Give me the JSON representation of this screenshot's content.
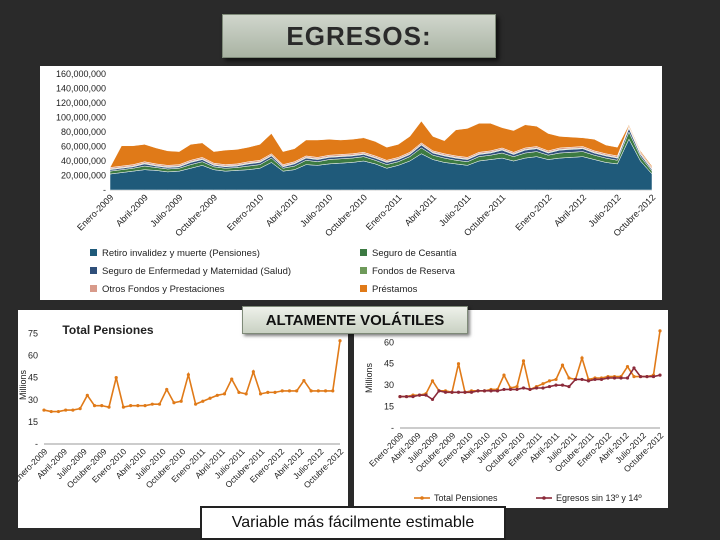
{
  "title": "EGRESOS:",
  "badge": "ALTAMENTE VOLÁTILES",
  "caption": "Variable más fácilmente estimable",
  "chart_data": [
    {
      "type": "area",
      "stacked": true,
      "ylim": [
        0,
        160000000
      ],
      "y_ticks": [
        "160,000,000",
        "140,000,000",
        "120,000,000",
        "100,000,000",
        "80,000,000",
        "60,000,000",
        "40,000,000",
        "20,000,000",
        "-"
      ],
      "x_tick_labels": [
        "Enero-2009",
        "Abril-2009",
        "Julio-2009",
        "Octubre-2009",
        "Enero-2010",
        "Abril-2010",
        "Julio-2010",
        "Octubre-2010",
        "Enero-2011",
        "Abril-2011",
        "Julio-2011",
        "Octubre-2011",
        "Enero-2012",
        "Abril-2012",
        "Julio-2012",
        "Octubre-2012"
      ],
      "n_points": 48,
      "series": [
        {
          "name": "Retiro invalidez y muerte (Pensiones)",
          "color": "#1f5a7a",
          "values": [
            22,
            24,
            26,
            28,
            27,
            25,
            26,
            30,
            34,
            28,
            26,
            27,
            28,
            30,
            38,
            26,
            28,
            35,
            34,
            36,
            37,
            38,
            40,
            36,
            30,
            34,
            40,
            50,
            42,
            38,
            36,
            34,
            40,
            42,
            44,
            40,
            44,
            46,
            42,
            44,
            45,
            46,
            42,
            38,
            36,
            70,
            40,
            22
          ]
        },
        {
          "name": "Seguro de Cesantía",
          "color": "#3c7a42",
          "values": [
            4,
            4,
            4,
            5,
            4,
            4,
            4,
            5,
            5,
            4,
            4,
            4,
            5,
            5,
            6,
            4,
            5,
            6,
            5,
            6,
            6,
            6,
            6,
            5,
            5,
            5,
            6,
            8,
            6,
            6,
            5,
            5,
            6,
            6,
            7,
            6,
            7,
            7,
            6,
            7,
            7,
            7,
            6,
            6,
            5,
            10,
            6,
            4
          ]
        },
        {
          "name": "Seguro de Enfermedad y Maternidad (Salud)",
          "color": "#2f4f7a",
          "values": [
            2,
            2,
            2,
            3,
            2,
            2,
            2,
            3,
            3,
            2,
            2,
            2,
            3,
            3,
            3,
            2,
            3,
            3,
            3,
            3,
            3,
            3,
            3,
            3,
            3,
            3,
            3,
            4,
            3,
            3,
            3,
            3,
            3,
            3,
            4,
            3,
            4,
            4,
            3,
            4,
            4,
            4,
            3,
            3,
            3,
            5,
            3,
            2
          ]
        },
        {
          "name": "Fondos de Reserva",
          "color": "#6e9a5a",
          "values": [
            1,
            1,
            1,
            1,
            1,
            1,
            1,
            1,
            1,
            1,
            1,
            1,
            1,
            1,
            1,
            1,
            1,
            1,
            1,
            1,
            1,
            1,
            1,
            1,
            1,
            1,
            1,
            1,
            1,
            1,
            1,
            1,
            1,
            1,
            1,
            1,
            1,
            1,
            1,
            1,
            1,
            1,
            1,
            1,
            1,
            1,
            1,
            1
          ]
        },
        {
          "name": "Otros Fondos y Prestaciones",
          "color": "#d89a8a",
          "values": [
            2,
            2,
            2,
            2,
            2,
            2,
            2,
            2,
            2,
            2,
            2,
            2,
            2,
            2,
            2,
            2,
            2,
            2,
            2,
            2,
            2,
            2,
            2,
            2,
            2,
            2,
            2,
            2,
            2,
            2,
            2,
            2,
            2,
            2,
            2,
            2,
            2,
            2,
            2,
            2,
            2,
            2,
            2,
            2,
            2,
            2,
            2,
            2
          ]
        },
        {
          "name": "Préstamos",
          "color": "#e07a18",
          "values": [
            0,
            28,
            26,
            24,
            22,
            20,
            18,
            22,
            20,
            16,
            20,
            20,
            20,
            22,
            28,
            18,
            18,
            22,
            24,
            22,
            20,
            20,
            20,
            20,
            18,
            18,
            22,
            30,
            20,
            18,
            36,
            40,
            40,
            38,
            28,
            30,
            32,
            28,
            24,
            16,
            14,
            12,
            16,
            12,
            12,
            2,
            2,
            2
          ]
        }
      ]
    },
    {
      "type": "line",
      "title": "Total Pensiones",
      "ylabel": "Millions",
      "ylim": [
        0,
        80
      ],
      "y_ticks": [
        "75",
        "60",
        "45",
        "30",
        "15",
        "-"
      ],
      "x_tick_labels": [
        "Enero-2009",
        "Abril-2009",
        "Julio-2009",
        "Octubre-2009",
        "Enero-2010",
        "Abril-2010",
        "Julio-2010",
        "Octubre-2010",
        "Enero-2011",
        "Abril-2011",
        "Julio-2011",
        "Octubre-2011",
        "Enero-2012",
        "Abril-2012",
        "Julio-2012",
        "Octubre-2012"
      ],
      "series": [
        {
          "name": "Total Pensiones",
          "color": "#e07a18",
          "values": [
            23,
            22,
            22,
            23,
            23,
            24,
            33,
            26,
            26,
            25,
            45,
            25,
            26,
            26,
            26,
            27,
            27,
            37,
            28,
            29,
            47,
            27,
            29,
            31,
            33,
            34,
            44,
            35,
            34,
            49,
            34,
            35,
            35,
            36,
            36,
            36,
            43,
            36,
            36,
            36,
            36,
            70
          ]
        }
      ]
    },
    {
      "type": "line",
      "ylabel": "Millions",
      "ylim": [
        0,
        70
      ],
      "y_ticks": [
        "60",
        "45",
        "30",
        "15",
        "-"
      ],
      "x_tick_labels": [
        "Enero-2009",
        "Abril-2009",
        "Julio-2009",
        "Octubre-2009",
        "Enero-2010",
        "Abril-2010",
        "Julio-2010",
        "Octubre-2010",
        "Enero-2011",
        "Abril-2011",
        "Julio-2011",
        "Octubre-2011",
        "Enero-2012",
        "Abril-2012",
        "Julio-2012",
        "Octubre-2012"
      ],
      "legend": [
        "Total Pensiones",
        "Egresos sin 13º y 14º"
      ],
      "series": [
        {
          "name": "Total Pensiones",
          "color": "#e07a18",
          "values": [
            22,
            22,
            23,
            23,
            24,
            33,
            26,
            26,
            25,
            45,
            25,
            26,
            26,
            26,
            27,
            27,
            37,
            28,
            29,
            47,
            27,
            29,
            31,
            33,
            34,
            44,
            35,
            34,
            49,
            34,
            35,
            35,
            36,
            36,
            36,
            43,
            36,
            36,
            36,
            37,
            68
          ]
        },
        {
          "name": "Egresos sin 13º y 14º",
          "color": "#8b2a3a",
          "values": [
            22,
            22,
            22,
            23,
            23,
            20,
            26,
            25,
            25,
            25,
            25,
            25,
            26,
            26,
            26,
            26,
            27,
            27,
            27,
            28,
            27,
            28,
            28,
            29,
            30,
            30,
            29,
            34,
            34,
            33,
            34,
            34,
            35,
            35,
            35,
            35,
            42,
            36,
            36,
            36,
            37
          ]
        }
      ]
    }
  ]
}
